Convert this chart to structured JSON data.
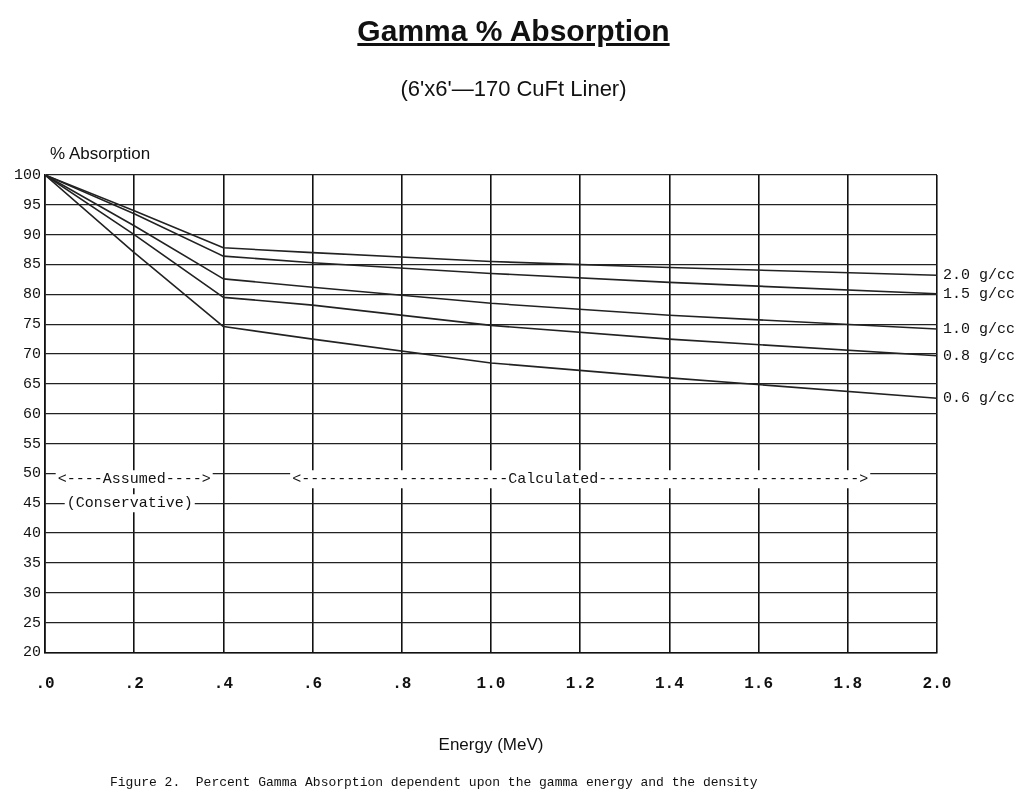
{
  "chart_data": {
    "type": "line",
    "title": "Gamma % Absorption",
    "subtitle": "(6'x6'—170 CuFt Liner)",
    "xlabel": "Energy (MeV)",
    "ylabel": "% Absorption",
    "x": [
      0,
      0.2,
      0.4,
      0.6,
      1.0,
      1.4,
      2.0
    ],
    "series": [
      {
        "name": "2.0 g/cc",
        "color": "#222222",
        "values": [
          100,
          94,
          87.8,
          87,
          85.5,
          84.5,
          83.2
        ]
      },
      {
        "name": "1.5 g/cc",
        "color": "#222222",
        "values": [
          100,
          93.5,
          86.4,
          85.3,
          83.5,
          82,
          80.1
        ]
      },
      {
        "name": "1.0 g/cc",
        "color": "#222222",
        "values": [
          100,
          91.5,
          82.6,
          81.2,
          78.5,
          76.5,
          74.2
        ]
      },
      {
        "name": "0.8 g/cc",
        "color": "#222222",
        "values": [
          100,
          90,
          79.5,
          78.2,
          74.8,
          72.5,
          69.7
        ]
      },
      {
        "name": "0.6 g/cc",
        "color": "#222222",
        "values": [
          100,
          87,
          74.6,
          72.5,
          68.5,
          66,
          62.6
        ]
      }
    ],
    "xlim": [
      0,
      2.0
    ],
    "xticks": [
      {
        "value": 0,
        "label": ".0"
      },
      {
        "value": 0.2,
        "label": ".2"
      },
      {
        "value": 0.4,
        "label": ".4"
      },
      {
        "value": 0.6,
        "label": ".6"
      },
      {
        "value": 0.8,
        "label": ".8"
      },
      {
        "value": 1.0,
        "label": "1.0"
      },
      {
        "value": 1.2,
        "label": "1.2"
      },
      {
        "value": 1.4,
        "label": "1.4"
      },
      {
        "value": 1.6,
        "label": "1.6"
      },
      {
        "value": 1.8,
        "label": "1.8"
      },
      {
        "value": 2.0,
        "label": "2.0"
      }
    ],
    "ylim": [
      20,
      100
    ],
    "yticks": [
      20,
      25,
      30,
      35,
      40,
      45,
      50,
      55,
      60,
      65,
      70,
      75,
      80,
      85,
      90,
      95,
      100
    ],
    "grid": true,
    "legend": false,
    "marker": "none",
    "line_style": "solid",
    "annotations": [
      "<----Assumed---->",
      "<-----------------------Calculated----------------------------->",
      "(Conservative)",
      "Figure 2.  Percent Gamma Absorption dependent upon the gamma energy and the density"
    ]
  }
}
